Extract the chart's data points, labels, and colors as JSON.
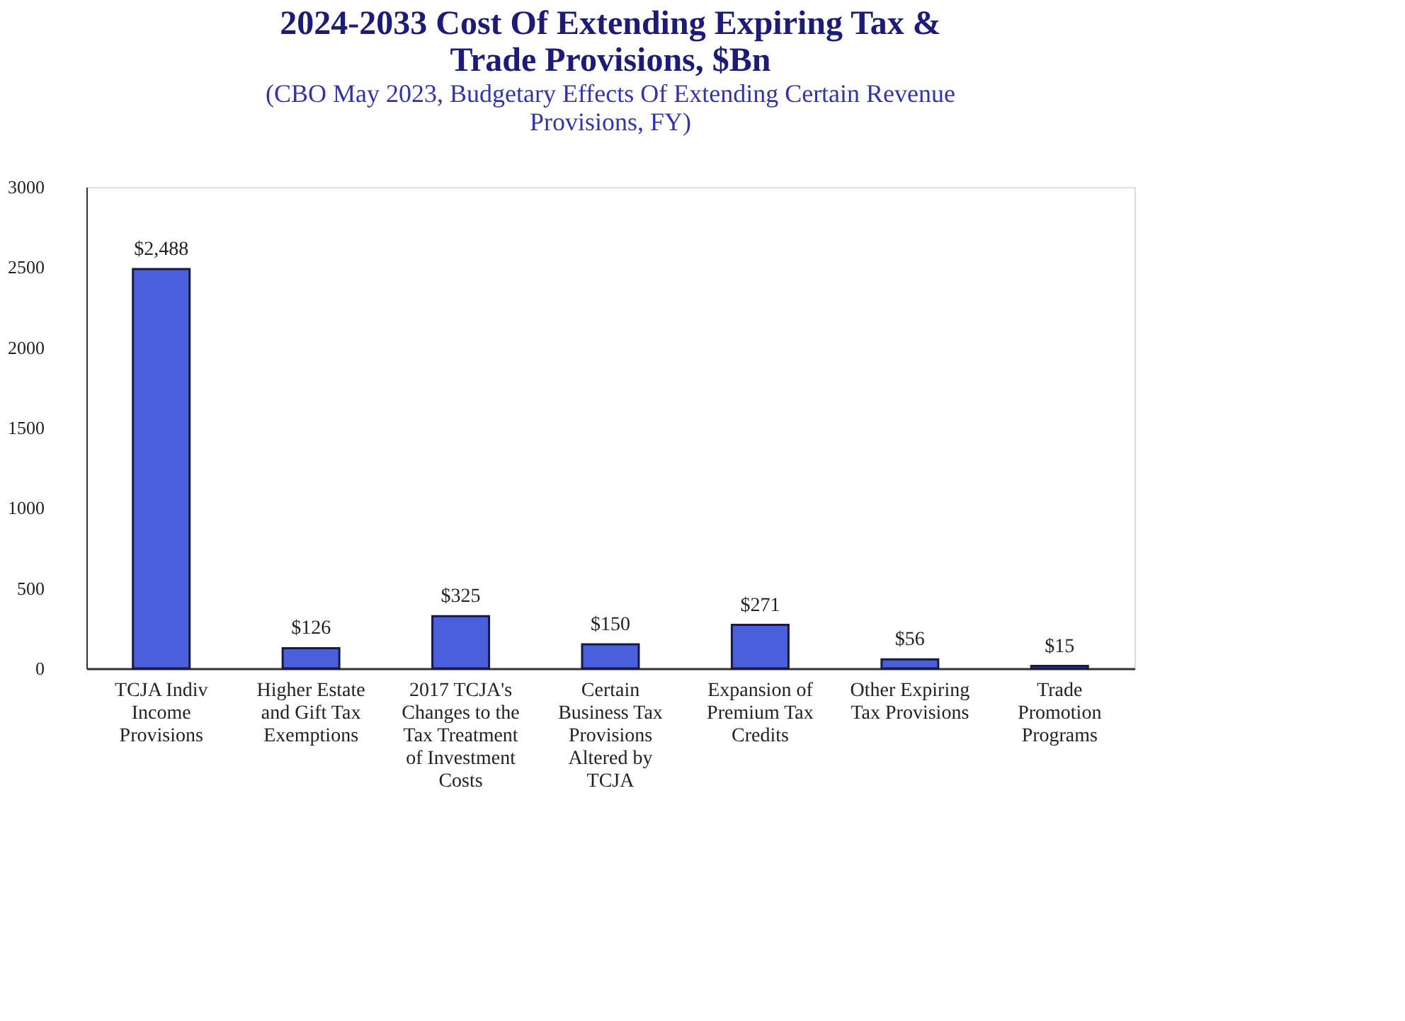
{
  "chart_data": {
    "type": "bar",
    "title": "2024-2033 Cost Of Extending Expiring Tax & Trade Provisions, $Bn",
    "subtitle": "(CBO May 2023, Budgetary Effects Of Extending Certain Revenue Provisions, FY)",
    "categories": [
      "TCJA Indiv Income Provisions",
      "Higher Estate and Gift Tax Exemptions",
      "2017 TCJA's Changes to the Tax Treatment of Investment Costs",
      "Certain Business Tax Provisions Altered by TCJA",
      "Expansion of Premium Tax Credits",
      "Other Expiring Tax Provisions",
      "Trade Promotion Programs"
    ],
    "values": [
      2488,
      126,
      325,
      150,
      271,
      56,
      15
    ],
    "value_labels": [
      "$2,488",
      "$126",
      "$325",
      "$150",
      "$271",
      "$56",
      "$15"
    ],
    "color": "#4a5fdc",
    "ylim": [
      0,
      3000
    ],
    "yticks": [
      0,
      500,
      1000,
      1500,
      2000,
      2500,
      3000
    ],
    "grid": false
  }
}
